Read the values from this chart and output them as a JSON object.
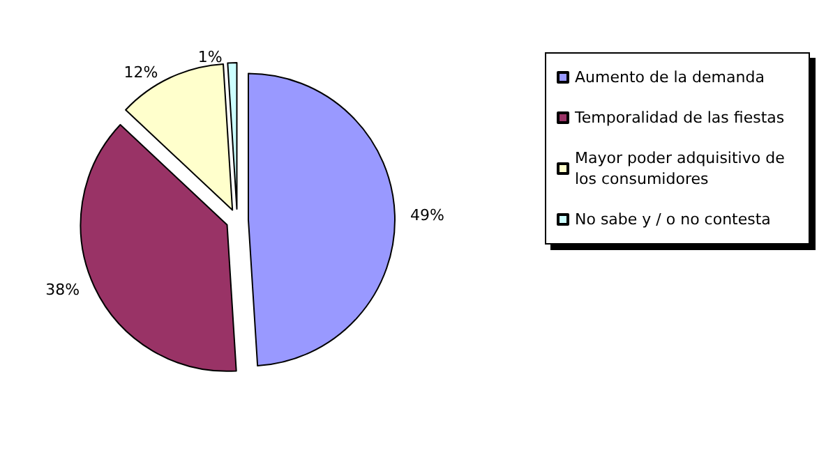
{
  "chart_data": {
    "type": "pie",
    "categories": [
      "Aumento de la demanda",
      "Temporalidad de las fiestas",
      "Mayor poder adquisitivo de los consumidores",
      "No sabe y / o no contesta"
    ],
    "values": [
      49,
      38,
      12,
      1
    ],
    "value_labels": [
      "49%",
      "38%",
      "12%",
      "1%"
    ],
    "colors": [
      "#9999ff",
      "#993366",
      "#ffffcc",
      "#ccffff"
    ],
    "legend": "right"
  }
}
